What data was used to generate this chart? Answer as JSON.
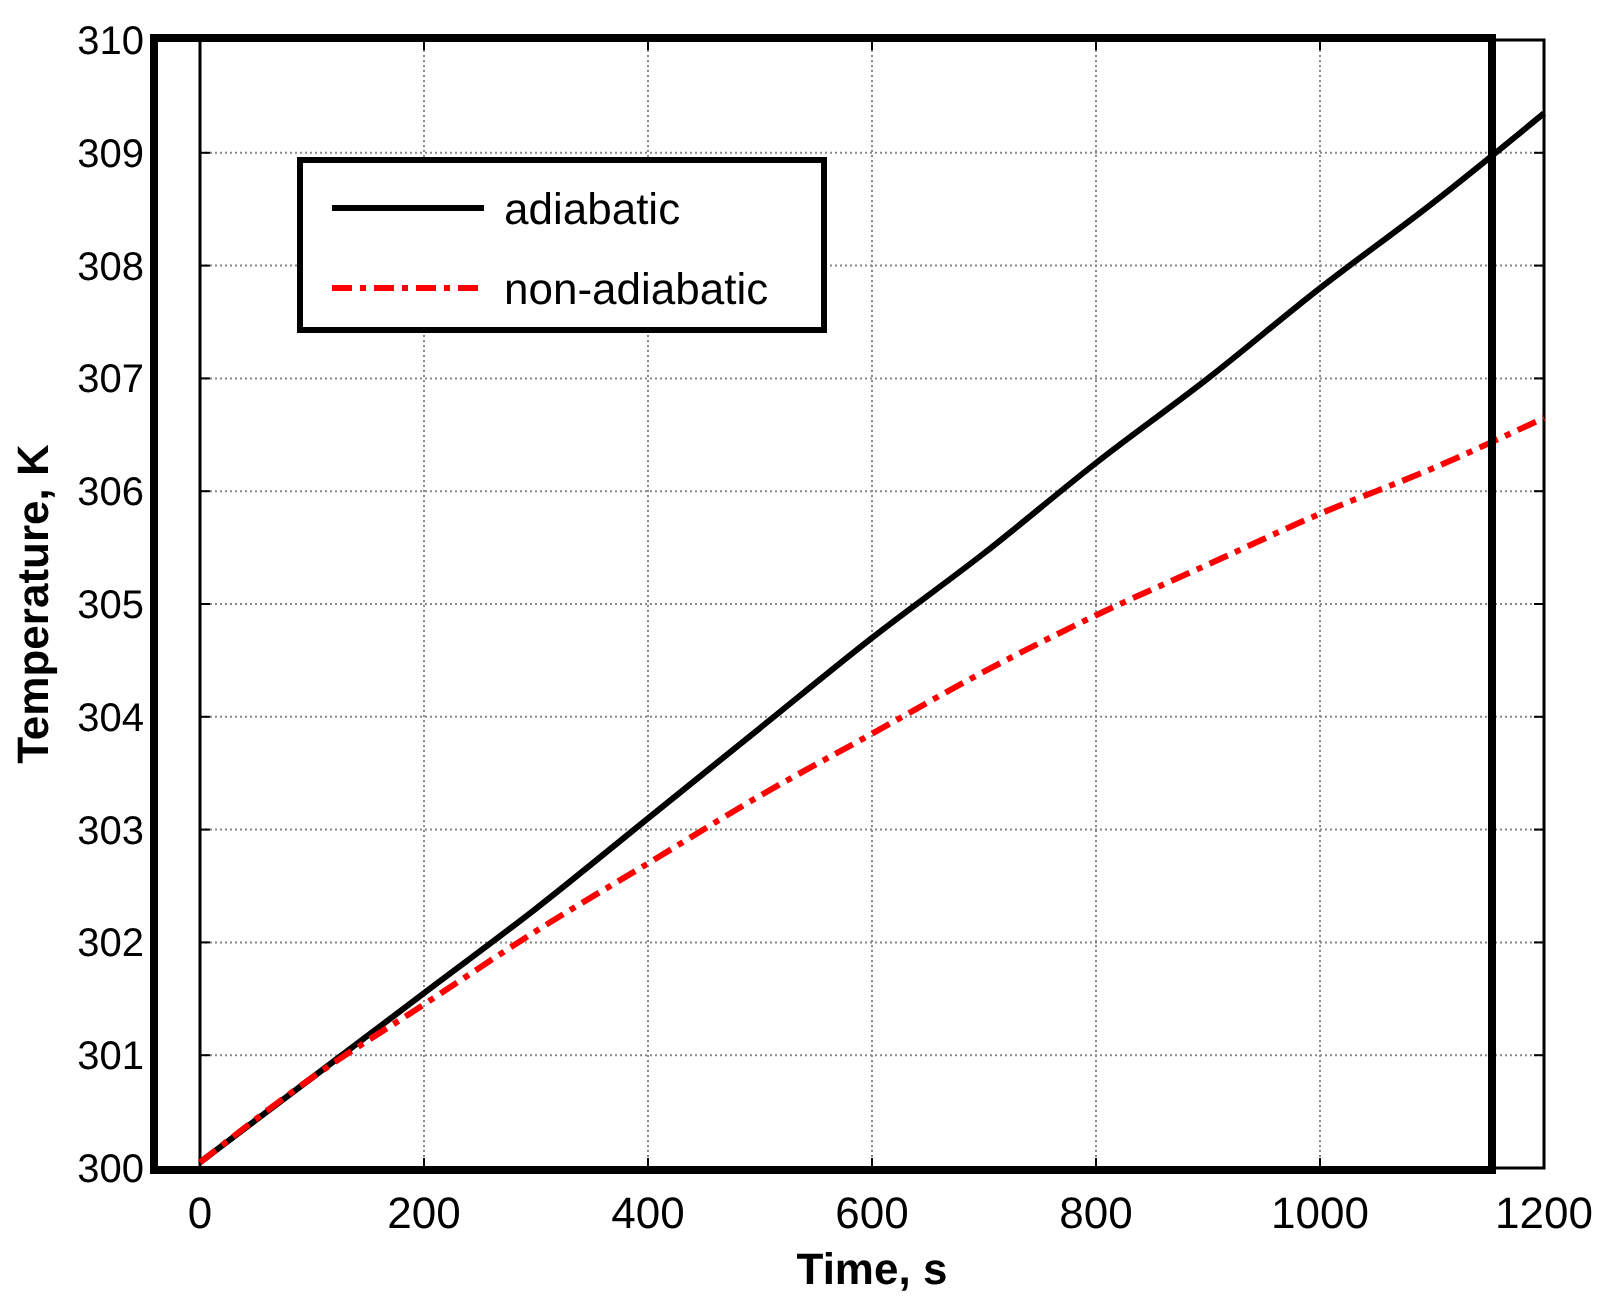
{
  "chart_data": {
    "type": "line",
    "xlabel": "Time, s",
    "ylabel": "Temperature, K",
    "xlim": [
      0,
      1200
    ],
    "ylim": [
      300,
      310
    ],
    "xticks": [
      0,
      200,
      400,
      600,
      800,
      1000,
      1200
    ],
    "yticks": [
      300,
      301,
      302,
      303,
      304,
      305,
      306,
      307,
      308,
      309,
      310
    ],
    "grid": true,
    "legend": "top left",
    "x": [
      0,
      100,
      200,
      300,
      400,
      500,
      600,
      700,
      800,
      900,
      1000,
      1100,
      1200
    ],
    "series": [
      {
        "name": "adiabatic",
        "color": "#000000",
        "line_style": "solid",
        "values": [
          300.05,
          300.8,
          301.55,
          302.3,
          303.1,
          303.9,
          304.7,
          305.45,
          306.25,
          307.0,
          307.8,
          308.55,
          309.35
        ]
      },
      {
        "name": "non-adiabatic",
        "color": "#ff0000",
        "line_style": "dashdot",
        "values": [
          300.05,
          300.8,
          301.45,
          302.1,
          302.7,
          303.3,
          303.85,
          304.4,
          304.9,
          305.35,
          305.8,
          306.2,
          306.65
        ]
      }
    ]
  }
}
